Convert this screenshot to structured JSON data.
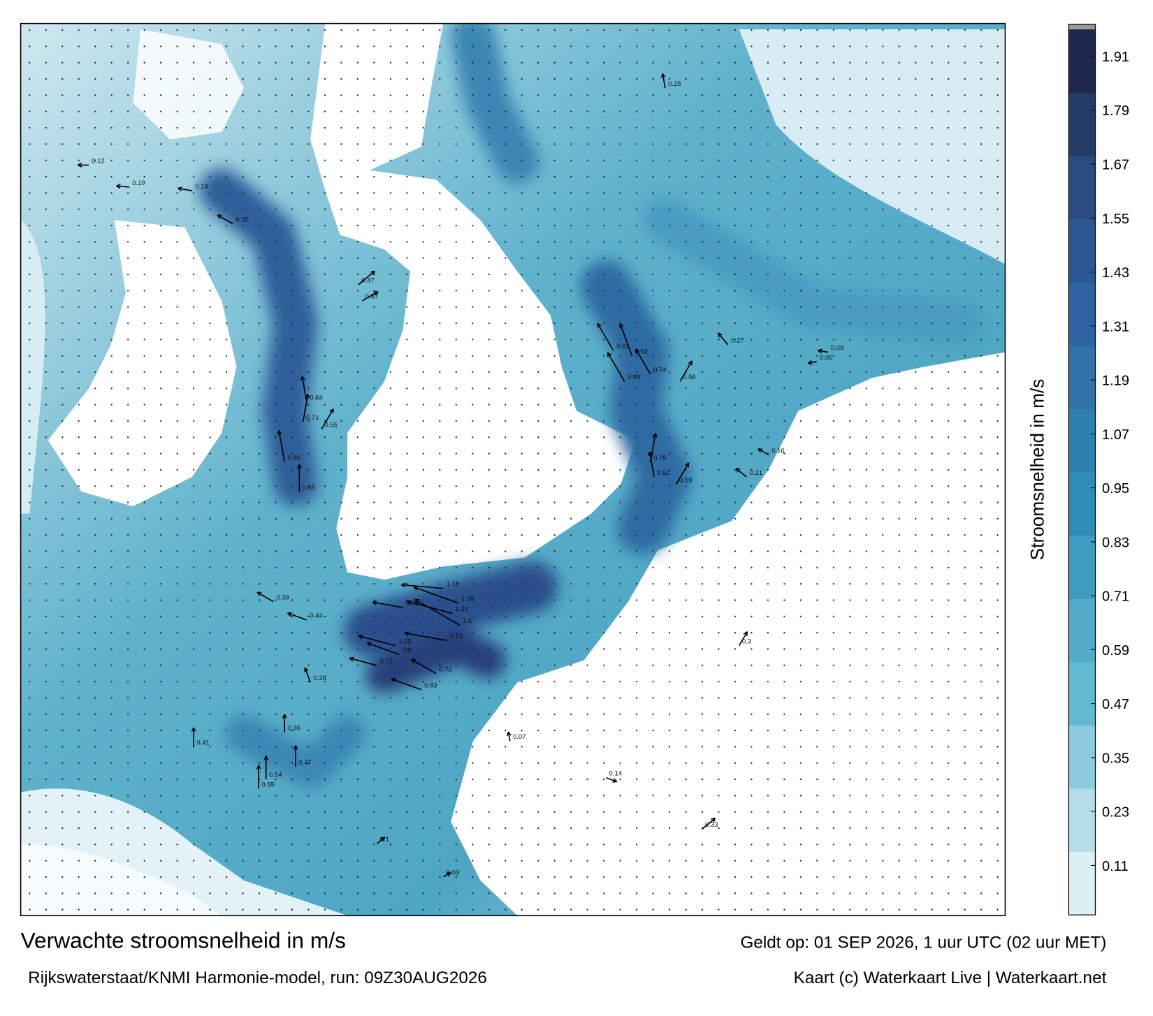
{
  "title": "Verwachte stroomsnelheid in m/s",
  "subtitle": "Rijkswaterstaat/KNMI Harmonie-model, run: 09Z30AUG2026",
  "valid_time": "Geldt op: 01 SEP 2026, 1 uur UTC (02 uur MET)",
  "credit": "Kaart (c) Waterkaart Live | Waterkaart.net",
  "colorbar": {
    "label": "Stroomsnelheid in m/s",
    "range": [
      0,
      1.97
    ],
    "ticks": [
      0.11,
      0.23,
      0.35,
      0.47,
      0.59,
      0.71,
      0.83,
      0.95,
      1.07,
      1.19,
      1.31,
      1.43,
      1.55,
      1.67,
      1.79,
      1.91
    ]
  },
  "speed_labels": [
    0.85,
    0.68,
    0.71,
    0.64,
    0.55,
    0.47,
    0.37,
    0.92,
    0.89,
    0.74,
    0.75,
    0.62,
    0.56,
    0.59,
    0.82,
    1.35,
    1.33,
    1.5,
    1.21,
    1.05,
    0.9,
    0.79,
    1.18,
    0.71,
    0.72,
    0.83,
    0.55,
    0.54,
    0.47,
    0.41,
    0.36,
    0.28,
    0.39,
    0.44,
    0.35,
    0.24,
    0.19,
    0.12,
    0.05,
    0.09,
    0.16,
    0.21,
    0.27,
    0.3,
    0.33,
    0.25,
    0.14,
    0.07,
    0.03,
    0.1
  ]
}
